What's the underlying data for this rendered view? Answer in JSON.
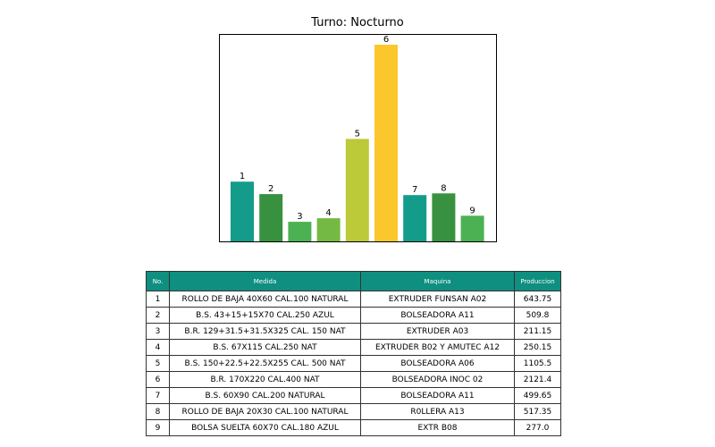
{
  "chart_data": {
    "type": "bar",
    "title": "Turno: Nocturno",
    "categories": [
      "1",
      "2",
      "3",
      "4",
      "5",
      "6",
      "7",
      "8",
      "9"
    ],
    "values": [
      643.75,
      509.8,
      211.15,
      250.15,
      1105.5,
      2121.4,
      499.65,
      517.35,
      277.0
    ],
    "data_labels": [
      "1",
      "2",
      "3",
      "4",
      "5",
      "6",
      "7",
      "8",
      "9"
    ],
    "colors": [
      "#139c8a",
      "#37913e",
      "#4cb153",
      "#74b944",
      "#bcc939",
      "#fcc72c",
      "#139c8a",
      "#37913e",
      "#4cb153"
    ],
    "ylim": [
      0,
      2121.4
    ],
    "grid": false,
    "axes_ticks": false
  },
  "table": {
    "header_color": "#0f8f80",
    "headers": [
      "No.",
      "Medida",
      "Maquina",
      "Produccion"
    ],
    "rows": [
      [
        "1",
        "ROLLO DE BAJA 40X60 CAL.100 NATURAL",
        "EXTRUDER FUNSAN  A02",
        "643.75"
      ],
      [
        "2",
        "B.S. 43+15+15X70 CAL.250 AZUL",
        "BOLSEADORA  A11",
        "509.8"
      ],
      [
        "3",
        "B.R. 129+31.5+31.5X325 CAL. 150 NAT",
        "EXTRUDER  A03",
        "211.15"
      ],
      [
        "4",
        "B.S. 67X115 CAL.250 NAT",
        "EXTRUDER  B02  Y AMUTEC  A12",
        "250.15"
      ],
      [
        "5",
        "B.S. 150+22.5+22.5X255 CAL. 500 NAT",
        "BOLSEADORA   A06",
        "1105.5"
      ],
      [
        "6",
        "B.R. 170X220 CAL.400 NAT",
        "BOLSEADORA  INOC  02",
        "2121.4"
      ],
      [
        "7",
        "B.S. 60X90 CAL.200 NATURAL",
        "BOLSEADORA  A11",
        "499.65"
      ],
      [
        "8",
        "ROLLO DE BAJA 20X30 CAL.100 NATURAL",
        "R0LLERA  A13",
        "517.35"
      ],
      [
        "9",
        "BOLSA SUELTA 60X70 CAL.180 AZUL",
        "EXTR B08",
        "277.0"
      ]
    ]
  }
}
